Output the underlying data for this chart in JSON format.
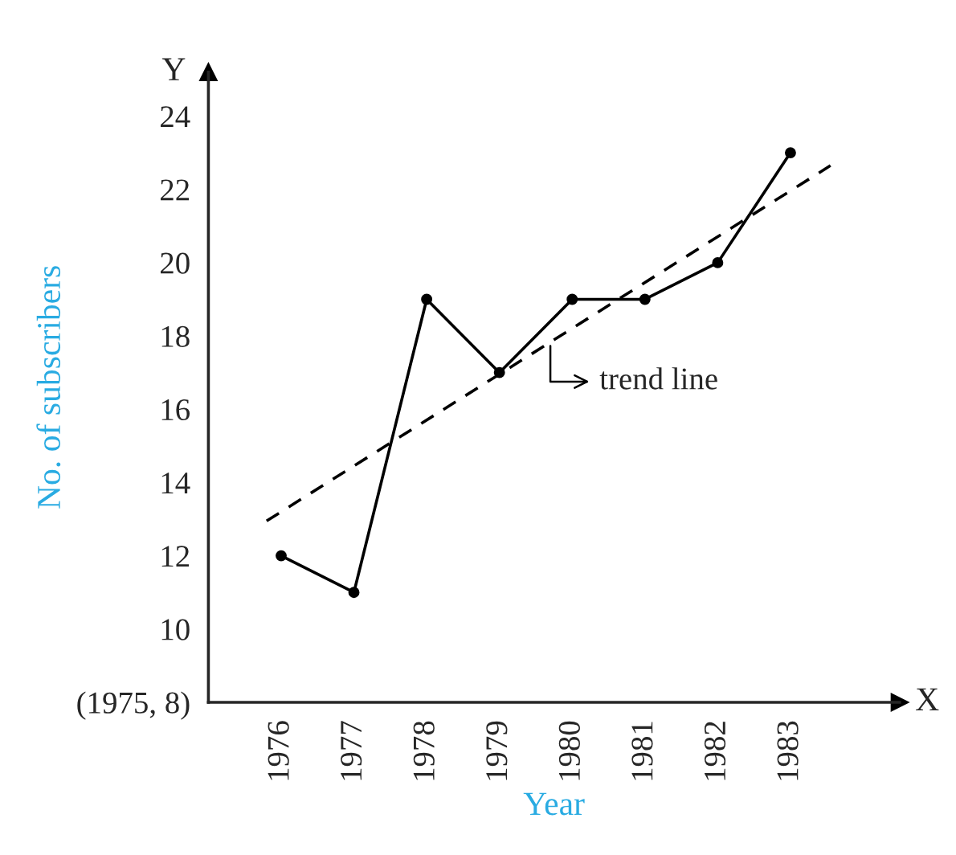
{
  "chart_data": {
    "type": "line",
    "xlabel": "Year",
    "ylabel": "No. of subscribers",
    "xlim": [
      1975,
      1984.5
    ],
    "ylim": [
      8,
      25.2
    ],
    "xticks": [
      {
        "value": 1976,
        "label": "1976"
      },
      {
        "value": 1977,
        "label": "1977"
      },
      {
        "value": 1978,
        "label": "1978"
      },
      {
        "value": 1979,
        "label": "1979"
      },
      {
        "value": 1980,
        "label": "1980"
      },
      {
        "value": 1981,
        "label": "1981"
      },
      {
        "value": 1982,
        "label": "1982"
      },
      {
        "value": 1983,
        "label": "1983"
      }
    ],
    "yticks": [
      {
        "value": 8,
        "label": "(1975, 8)"
      },
      10,
      12,
      14,
      16,
      18,
      20,
      22,
      24
    ],
    "grid": false,
    "series": [
      {
        "color": "#000000",
        "marker": "circle",
        "line_style": "solid",
        "x": [
          1976,
          1977,
          1978,
          1979,
          1980,
          1981,
          1982,
          1983
        ],
        "values": [
          12,
          11,
          19,
          17,
          19,
          19,
          20,
          23
        ]
      },
      {
        "color": "#000000",
        "marker": "none",
        "line_style": "dashed",
        "x": [
          1975.8,
          1983.55
        ],
        "values": [
          12.95,
          22.65
        ]
      }
    ],
    "annotations": [
      {
        "text": "trend line",
        "x": 1979.7,
        "y": 17.85
      },
      "X",
      "Y"
    ]
  }
}
